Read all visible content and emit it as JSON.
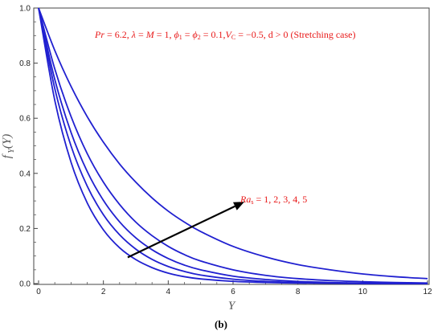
{
  "caption": "(b)",
  "colors": {
    "series": "#2020d0",
    "annotation": "#e81818",
    "arrow": "#000000",
    "axis": "#444444"
  },
  "chart_data": {
    "type": "line",
    "xlabel": "Y",
    "ylabel": "f Y(Y)",
    "xlim": [
      0,
      12
    ],
    "ylim": [
      0,
      1
    ],
    "xticks": [
      "0",
      "2",
      "4",
      "6",
      "8",
      "10",
      "12"
    ],
    "yticks": [
      "0.0",
      "0.2",
      "0.4",
      "0.6",
      "0.8",
      "1.0"
    ],
    "grid": false,
    "annotation_top": "Pr = 6.2, λ = M = 1, ϕ₁ = ϕ₂ = 0.1,VC = −0.5, d > 0 (Stretching case)",
    "annotation_arrow": "Ras = 1, 2, 3, 4, 5",
    "arrow_from": [
      2.75,
      0.095
    ],
    "arrow_to": [
      6.35,
      0.297
    ],
    "series": [
      {
        "x": [
          0,
          0.5,
          1,
          1.5,
          2,
          2.5,
          3,
          3.5,
          4,
          4.5,
          5,
          6,
          7,
          8,
          9,
          10,
          11,
          12
        ],
        "values": [
          1.0,
          0.665,
          0.441,
          0.293,
          0.195,
          0.13,
          0.087,
          0.058,
          0.038,
          0.025,
          0.017,
          0.008,
          0.004,
          0.002,
          0.001,
          0.0,
          0.0,
          0.0
        ]
      },
      {
        "x": [
          0,
          0.5,
          1,
          1.5,
          2,
          2.5,
          3,
          3.5,
          4,
          4.5,
          5,
          6,
          7,
          8,
          9,
          10,
          11,
          12
        ],
        "values": [
          1.0,
          0.708,
          0.5,
          0.354,
          0.25,
          0.177,
          0.125,
          0.088,
          0.062,
          0.044,
          0.031,
          0.016,
          0.008,
          0.004,
          0.002,
          0.001,
          0.0,
          0.0
        ]
      },
      {
        "x": [
          0,
          0.5,
          1,
          1.5,
          2,
          2.5,
          3,
          3.5,
          4,
          4.5,
          5,
          6,
          7,
          8,
          9,
          10,
          11,
          12
        ],
        "values": [
          1.0,
          0.741,
          0.549,
          0.407,
          0.302,
          0.224,
          0.166,
          0.123,
          0.091,
          0.067,
          0.05,
          0.027,
          0.015,
          0.008,
          0.004,
          0.002,
          0.001,
          0.0
        ]
      },
      {
        "x": [
          0,
          0.5,
          1,
          1.5,
          2,
          2.5,
          3,
          3.5,
          4,
          4.5,
          5,
          6,
          7,
          8,
          9,
          10,
          11,
          12
        ],
        "values": [
          1.0,
          0.779,
          0.607,
          0.472,
          0.368,
          0.287,
          0.223,
          0.174,
          0.135,
          0.105,
          0.082,
          0.05,
          0.03,
          0.018,
          0.011,
          0.007,
          0.004,
          0.002
        ]
      },
      {
        "x": [
          0,
          0.5,
          1,
          1.5,
          2,
          2.5,
          3,
          3.5,
          4,
          4.5,
          5,
          6,
          7,
          8,
          9,
          10,
          11,
          12
        ],
        "values": [
          1.0,
          0.846,
          0.716,
          0.606,
          0.513,
          0.434,
          0.368,
          0.311,
          0.263,
          0.223,
          0.189,
          0.135,
          0.097,
          0.069,
          0.05,
          0.035,
          0.025,
          0.018
        ]
      }
    ]
  }
}
